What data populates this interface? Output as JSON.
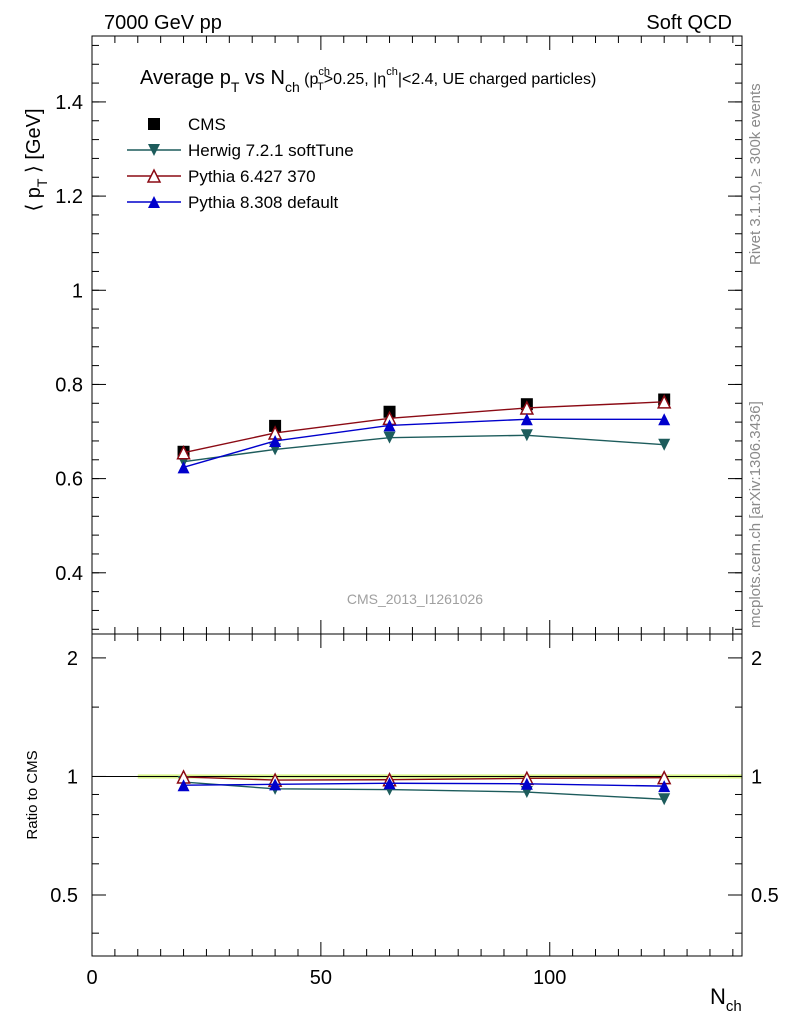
{
  "header": {
    "left": "7000 GeV pp",
    "right": "Soft QCD"
  },
  "side_labels": {
    "rivet": "Rivet 3.1.10, ≥ 300k events",
    "mcplots": "mcplots.cern.ch [arXiv:1306.3436]"
  },
  "watermark": "CMS_2013_I1261026",
  "chart_data": [
    {
      "type": "line",
      "title": {
        "main": "Average p",
        "main_sub": "T",
        "vs": " vs N",
        "vs_sub": "ch",
        "cond_a": " (p",
        "cond_sup": "ch",
        "cond_sub": "T",
        "cond_b": ">0.25, |η",
        "cond_sup2": "ch",
        "cond_c": "|<2.4, UE charged particles)"
      },
      "ylabel": {
        "a": "⟨ p",
        "sub": "T",
        "b": " ⟩ [GeV]"
      },
      "xlim": [
        0,
        142
      ],
      "ylim": [
        0.27,
        1.54
      ],
      "yticks": [
        0.4,
        0.6,
        0.8,
        1,
        1.2,
        1.4
      ],
      "ytick_labels": [
        "0.4",
        "0.6",
        "0.8",
        "1",
        "1.2",
        "1.4"
      ],
      "x": [
        20,
        40,
        65,
        95,
        125
      ],
      "series": [
        {
          "name": "CMS",
          "marker": "square",
          "color": "#000000",
          "values": [
            0.657,
            0.712,
            0.742,
            0.758,
            0.768
          ]
        },
        {
          "name": "Herwig 7.2.1 softTune",
          "marker": "triangle-down",
          "color": "#1d5c5c",
          "values": [
            0.636,
            0.662,
            0.687,
            0.692,
            0.672
          ]
        },
        {
          "name": "Pythia 6.427 370",
          "marker": "triangle-up-open",
          "color": "#8b0a14",
          "values": [
            0.655,
            0.697,
            0.728,
            0.75,
            0.763
          ]
        },
        {
          "name": "Pythia 8.308 default",
          "marker": "triangle-up",
          "color": "#0000cc",
          "values": [
            0.624,
            0.68,
            0.713,
            0.726,
            0.726
          ]
        }
      ]
    },
    {
      "type": "line",
      "ylabel": "Ratio to CMS",
      "xlabel": {
        "a": "N",
        "sub": "ch"
      },
      "xlim": [
        0,
        142
      ],
      "ylim": [
        0.35,
        2.3
      ],
      "yscale": "log",
      "xticks": [
        0,
        50,
        100
      ],
      "xtick_labels": [
        "0",
        "50",
        "100"
      ],
      "yticks": [
        0.5,
        1,
        2
      ],
      "ytick_labels": [
        "0.5",
        "1",
        "2"
      ],
      "x": [
        20,
        40,
        65,
        95,
        125
      ],
      "band_color": "#d8f58a",
      "series": [
        {
          "name": "Herwig 7.2.1 softTune",
          "color": "#1d5c5c",
          "values": [
            0.968,
            0.93,
            0.926,
            0.913,
            0.875
          ]
        },
        {
          "name": "Pythia 6.427 370",
          "color": "#8b0a14",
          "values": [
            0.997,
            0.979,
            0.981,
            0.989,
            0.993
          ]
        },
        {
          "name": "Pythia 8.308 default",
          "color": "#0000cc",
          "values": [
            0.95,
            0.955,
            0.961,
            0.958,
            0.945
          ]
        }
      ]
    }
  ]
}
